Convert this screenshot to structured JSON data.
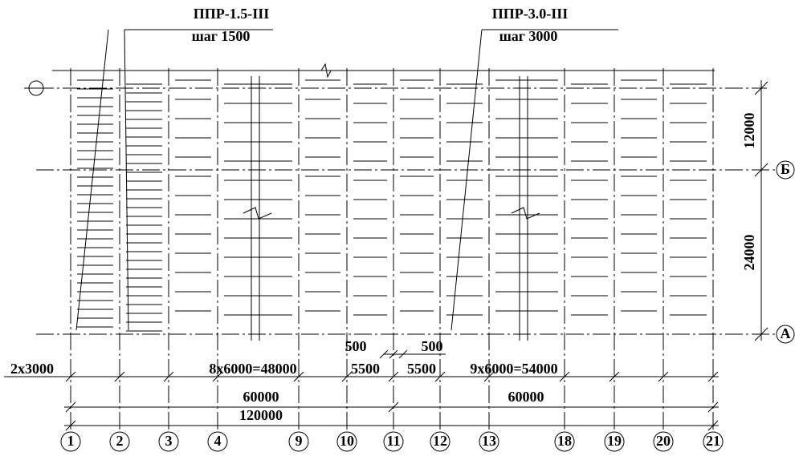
{
  "callouts": [
    {
      "label": "ППР-1.5-III",
      "step": "шаг 1500"
    },
    {
      "label": "ППР-3.0-III",
      "step": "шаг 3000"
    }
  ],
  "dimensions": {
    "bottom": [
      "2x3000",
      "8x6000=48000",
      "500",
      "500",
      "5500",
      "5500",
      "9x6000=54000",
      "60000",
      "60000",
      "120000"
    ],
    "right": [
      "12000",
      "24000"
    ]
  },
  "axes": {
    "rows": [
      "Б",
      "А"
    ],
    "columns": [
      "1",
      "2",
      "3",
      "4",
      "9",
      "10",
      "11",
      "12",
      "13",
      "18",
      "19",
      "20",
      "21"
    ]
  }
}
